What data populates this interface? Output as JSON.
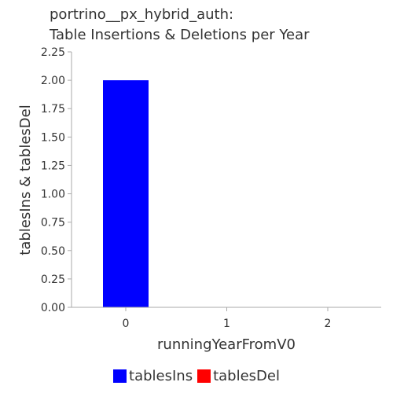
{
  "chart_data": {
    "type": "bar",
    "title_line1": "portrino__px_hybrid_auth:",
    "title_line2": "Table Insertions & Deletions per Year",
    "xlabel": "runningYearFromV0",
    "ylabel": "tablesIns & tablesDel",
    "categories": [
      "0",
      "1",
      "2"
    ],
    "x_tick_labels": [
      "0",
      "1",
      "2"
    ],
    "y_tick_labels": [
      "0.00",
      "0.25",
      "0.50",
      "0.75",
      "1.00",
      "1.25",
      "1.50",
      "1.75",
      "2.00",
      "2.25"
    ],
    "ylim": [
      0,
      2.25
    ],
    "grid": false,
    "legend_placement": "bottom",
    "series": [
      {
        "name": "tablesIns",
        "color": "#0000ff",
        "values": [
          2,
          0,
          0
        ]
      },
      {
        "name": "tablesDel",
        "color": "#ff0000",
        "values": [
          0,
          0,
          0
        ]
      }
    ]
  }
}
